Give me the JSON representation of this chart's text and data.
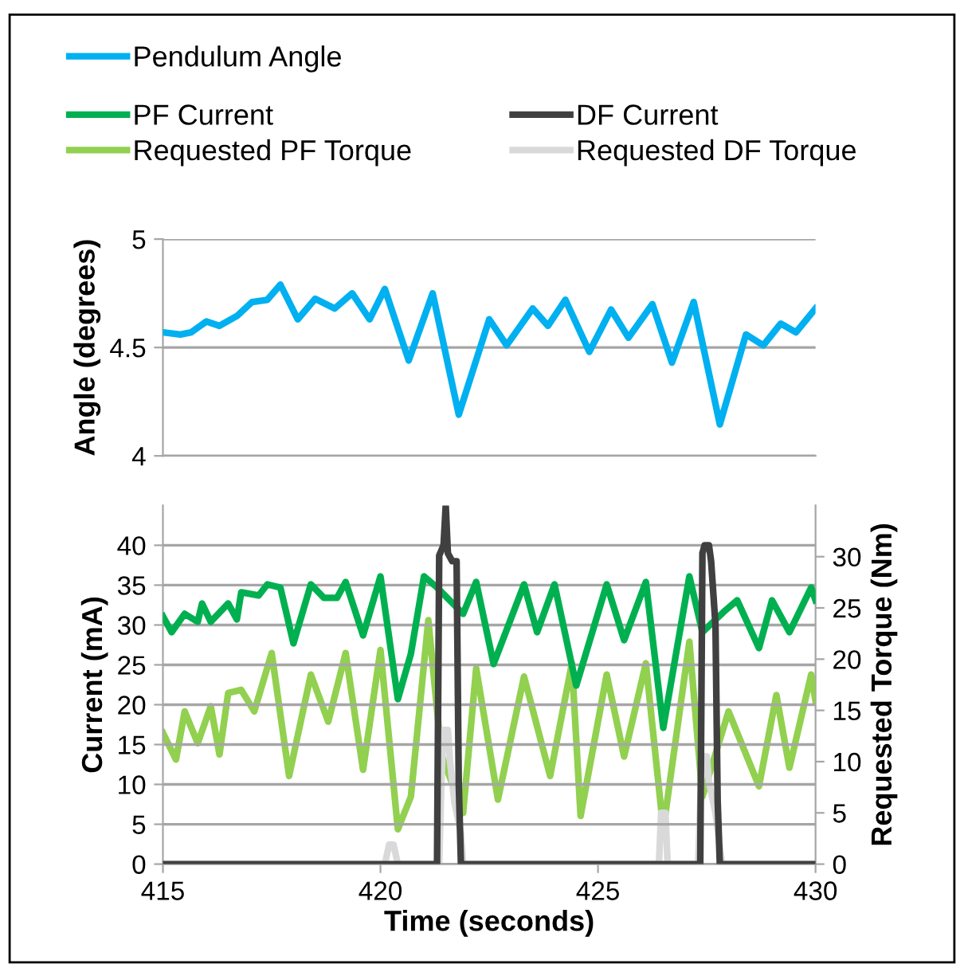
{
  "chart_data": [
    {
      "type": "line",
      "ylabel": "Angle (degrees)",
      "ylim": [
        4,
        5
      ],
      "yticks": [
        4,
        4.5,
        5
      ],
      "xlim": [
        415,
        430
      ],
      "tick_labels": "y",
      "grid": "y",
      "legend": "top",
      "marker": "none",
      "line_style": "solid",
      "series": [
        {
          "name": "Pendulum Angle",
          "color": "#00b0f0",
          "x": [
            415.0,
            415.4,
            415.65,
            416.0,
            416.3,
            416.7,
            417.05,
            417.4,
            417.7,
            418.1,
            418.5,
            418.95,
            419.35,
            419.75,
            420.1,
            420.65,
            421.2,
            421.8,
            422.5,
            422.9,
            423.5,
            423.85,
            424.25,
            424.8,
            425.3,
            425.7,
            426.25,
            426.7,
            427.2,
            427.8,
            428.4,
            428.8,
            429.2,
            429.55,
            430.0
          ],
          "values": [
            4.57,
            4.56,
            4.57,
            4.62,
            4.6,
            4.645,
            4.71,
            4.72,
            4.79,
            4.63,
            4.725,
            4.68,
            4.75,
            4.63,
            4.77,
            4.44,
            4.75,
            4.19,
            4.63,
            4.51,
            4.68,
            4.6,
            4.72,
            4.48,
            4.675,
            4.545,
            4.7,
            4.43,
            4.71,
            4.145,
            4.56,
            4.51,
            4.61,
            4.57,
            4.68
          ]
        }
      ]
    },
    {
      "type": "line",
      "xlabel": "Time (seconds)",
      "ylabel": "Current (mA)",
      "y2label": "Requested Torque (Nm)",
      "xlim": [
        415,
        430
      ],
      "xticks": [
        415,
        420,
        425,
        430
      ],
      "ylim": [
        0,
        45
      ],
      "yticks": [
        0,
        5,
        10,
        15,
        20,
        25,
        30,
        35,
        40
      ],
      "y2lim": [
        0,
        35
      ],
      "y2ticks": [
        0,
        5,
        10,
        15,
        20,
        25,
        30
      ],
      "grid": "y",
      "legend": "top",
      "marker": "none",
      "line_style": "solid",
      "series": [
        {
          "name": "PF Current",
          "color": "#00b050",
          "x": [
            415.0,
            415.2,
            415.5,
            415.8,
            415.9,
            416.1,
            416.5,
            416.7,
            416.8,
            417.2,
            417.4,
            417.7,
            418.0,
            418.4,
            418.7,
            419.0,
            419.2,
            419.6,
            420.0,
            420.4,
            420.7,
            421.0,
            421.3,
            421.9,
            422.2,
            422.6,
            423.3,
            423.6,
            424.0,
            424.5,
            425.2,
            425.6,
            426.1,
            426.5,
            427.1,
            427.4,
            427.9,
            428.2,
            428.7,
            429.0,
            429.4,
            429.9,
            430.0
          ],
          "values": [
            31.1,
            29.1,
            31.4,
            30.4,
            32.7,
            30.4,
            32.7,
            30.7,
            34.1,
            33.7,
            35.1,
            34.7,
            27.7,
            35.1,
            33.4,
            33.4,
            35.4,
            28.7,
            36.1,
            20.7,
            26.4,
            36.1,
            34.7,
            31.4,
            35.4,
            25.1,
            35.1,
            29.1,
            35.1,
            22.4,
            35.1,
            28.1,
            35.4,
            17.1,
            36.1,
            29.1,
            31.7,
            33.1,
            27.1,
            33.1,
            29.1,
            34.7,
            33.1
          ]
        },
        {
          "name": "Requested PF Torque",
          "color": "#92d050",
          "axis": "y2",
          "x": [
            415.0,
            415.3,
            415.5,
            415.8,
            416.1,
            416.3,
            416.5,
            416.8,
            417.1,
            417.5,
            417.9,
            418.4,
            418.8,
            419.2,
            419.6,
            420.0,
            420.4,
            420.7,
            421.1,
            421.4,
            421.9,
            422.2,
            422.7,
            423.3,
            423.9,
            424.4,
            424.6,
            425.2,
            425.6,
            426.1,
            426.5,
            427.1,
            427.4,
            428.0,
            428.7,
            429.1,
            429.4,
            429.9,
            430.0
          ],
          "values": [
            12.8,
            10.2,
            14.9,
            11.8,
            15.4,
            10.7,
            16.7,
            17.0,
            14.9,
            20.6,
            8.6,
            18.5,
            13.9,
            20.6,
            9.2,
            20.9,
            3.4,
            6.6,
            23.8,
            10.7,
            5.0,
            19.1,
            6.3,
            18.3,
            8.6,
            19.6,
            4.7,
            18.5,
            10.5,
            19.6,
            3.4,
            21.7,
            6.6,
            14.9,
            7.6,
            16.5,
            9.4,
            18.5,
            15.9
          ]
        },
        {
          "name": "DF Current",
          "color": "#404040",
          "x": [
            415,
            421.3,
            421.35,
            421.45,
            421.5,
            421.55,
            421.65,
            421.75,
            421.8,
            421.85,
            427.35,
            427.4,
            427.45,
            427.55,
            427.6,
            427.7,
            427.75,
            427.8,
            430
          ],
          "values": [
            0,
            0,
            38.7,
            40,
            45,
            39,
            38,
            38,
            10,
            0,
            0,
            39,
            40,
            40,
            38,
            30,
            8,
            0,
            0
          ]
        },
        {
          "name": "Requested DF Torque",
          "color": "#d9d9d9",
          "axis": "y2",
          "x": [
            415,
            420.1,
            420.2,
            420.3,
            420.4,
            421.35,
            421.4,
            421.45,
            421.55,
            421.6,
            421.7,
            421.85,
            421.9,
            426.4,
            426.45,
            426.55,
            426.6,
            427.3,
            427.35,
            427.4,
            427.5,
            427.55,
            427.7,
            427.85,
            430
          ],
          "values": [
            0,
            0,
            1.9,
            1.9,
            0,
            0,
            8,
            13.1,
            13.1,
            10,
            6,
            3,
            0,
            0,
            5,
            5,
            0,
            0,
            6,
            10.5,
            10.5,
            8,
            5,
            0,
            0
          ]
        }
      ]
    }
  ]
}
